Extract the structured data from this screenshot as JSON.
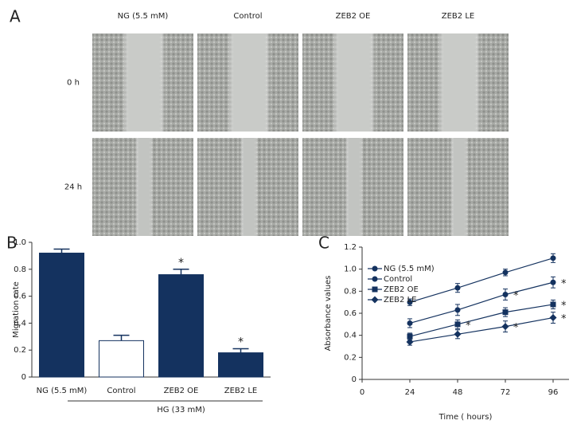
{
  "panel_a": {
    "panel_label": "A",
    "columns": [
      "NG (5.5 mM)",
      "Control",
      "ZEB2 OE",
      "ZEB2 LE"
    ],
    "rows": [
      "0 h",
      "24 h"
    ]
  },
  "chart_data": [
    {
      "type": "bar",
      "panel_label": "B",
      "y_label": "Migration rate",
      "categories": [
        "NG (5.5 mM)",
        "Control",
        "ZEB2 OE",
        "ZEB2 LE"
      ],
      "values": [
        0.92,
        0.27,
        0.76,
        0.18
      ],
      "errors": [
        0.03,
        0.04,
        0.04,
        0.03
      ],
      "colors": [
        "#14325f",
        "#ffffff",
        "#14325f",
        "#14325f"
      ],
      "annotations": [
        null,
        null,
        "*",
        "*"
      ],
      "group_label": "HG (33 mM)",
      "ylim": [
        0,
        1
      ],
      "yticks": [
        0,
        0.2,
        0.4,
        0.6,
        0.8,
        {
          "value": 1,
          "label": "1.0"
        }
      ]
    },
    {
      "type": "line",
      "panel_label": "C",
      "x_label": "Time ( hours)",
      "y_label": "Absorbance values",
      "x": [
        24,
        48,
        72,
        96
      ],
      "series": [
        {
          "name": "NG (5.5 mM)",
          "color": "#14325f",
          "marker": "circle",
          "values": [
            0.7,
            0.83,
            0.97,
            1.1
          ],
          "errors": [
            0.03,
            0.04,
            0.03,
            0.04
          ],
          "annotations": [
            null,
            null,
            null,
            null
          ]
        },
        {
          "name": "Control",
          "color": "#14325f",
          "marker": "circle",
          "values": [
            0.51,
            0.63,
            0.77,
            0.88
          ],
          "errors": [
            0.04,
            0.05,
            0.05,
            0.05
          ],
          "annotations": [
            null,
            null,
            "*",
            "*"
          ]
        },
        {
          "name": "ZEB2 OE",
          "color": "#14325f",
          "marker": "square",
          "values": [
            0.39,
            0.5,
            0.61,
            0.68
          ],
          "errors": [
            0.03,
            0.04,
            0.04,
            0.04
          ],
          "annotations": [
            null,
            "*",
            null,
            "*"
          ]
        },
        {
          "name": "ZEB2 LE",
          "color": "#14325f",
          "marker": "diamond",
          "values": [
            0.34,
            0.41,
            0.48,
            0.56
          ],
          "errors": [
            0.03,
            0.04,
            0.05,
            0.05
          ],
          "annotations": [
            null,
            null,
            "*",
            "*"
          ]
        }
      ],
      "xlim": [
        0,
        104
      ],
      "xticks": [
        0,
        24,
        48,
        72,
        96
      ],
      "ylim": [
        0,
        1.2
      ],
      "yticks": [
        0,
        0.2,
        0.4,
        0.6,
        0.8,
        {
          "value": 1,
          "label": "1.0"
        },
        1.2
      ]
    }
  ]
}
